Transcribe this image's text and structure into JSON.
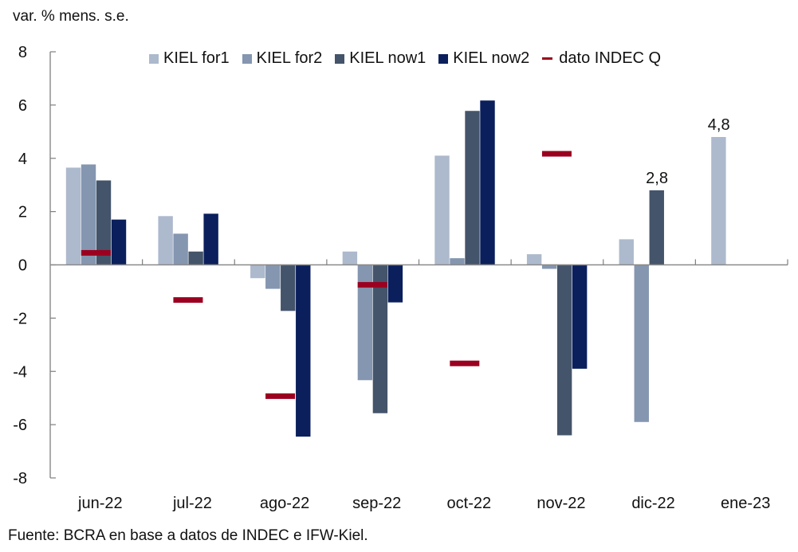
{
  "chart_data": {
    "type": "bar",
    "title": "",
    "ylabel": "var. % mens. s.e.",
    "xlabel": "",
    "ylim": [
      -8,
      8
    ],
    "yticks": [
      8,
      6,
      4,
      2,
      0,
      -2,
      -4,
      -6,
      -8
    ],
    "ytick_labels": [
      "8",
      "6",
      "4",
      "2",
      "0",
      "-2",
      "-4",
      "-6",
      "-8"
    ],
    "grid": false,
    "legend_position": "top-right",
    "categories": [
      "jun-22",
      "jul-22",
      "ago-22",
      "sep-22",
      "oct-22",
      "nov-22",
      "dic-22",
      "ene-23"
    ],
    "series": [
      {
        "name": "KIEL for1",
        "kind": "bar",
        "color": "#adb9cc",
        "values": [
          3.65,
          1.83,
          -0.5,
          0.5,
          4.1,
          0.4,
          0.96,
          4.8
        ]
      },
      {
        "name": "KIEL for2",
        "kind": "bar",
        "color": "#8496b0",
        "values": [
          3.77,
          1.17,
          -0.9,
          -4.33,
          0.25,
          -0.15,
          -5.9,
          null
        ]
      },
      {
        "name": "KIEL now1",
        "kind": "bar",
        "color": "#44546a",
        "values": [
          3.17,
          0.5,
          -1.73,
          -5.57,
          5.78,
          -6.4,
          2.8,
          null
        ]
      },
      {
        "name": "KIEL now2",
        "kind": "bar",
        "color": "#0a1f5c",
        "values": [
          1.7,
          1.92,
          -6.45,
          -1.41,
          6.17,
          -3.9,
          null,
          null
        ]
      },
      {
        "name": "dato INDEC Q",
        "kind": "marker",
        "color": "#9b0020",
        "values": [
          0.45,
          -1.32,
          -4.93,
          -0.75,
          -3.7,
          4.17,
          null,
          null
        ]
      }
    ],
    "annotations": [
      {
        "category": "dic-22",
        "series": "KIEL now1",
        "text": "2,8"
      },
      {
        "category": "ene-23",
        "series": "KIEL for1",
        "text": "4,8"
      }
    ],
    "source": "Fuente: BCRA en base a datos de INDEC e IFW-Kiel."
  }
}
